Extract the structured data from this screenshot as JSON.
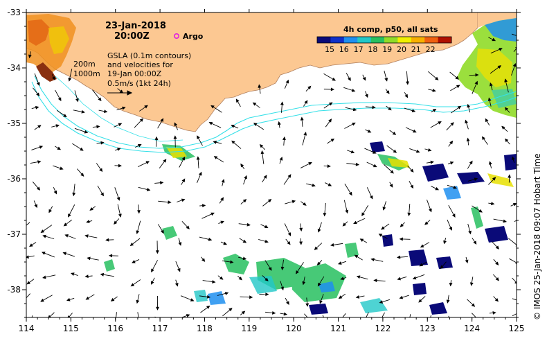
{
  "header": {
    "date": "23-Jan-2018",
    "time": "20:00Z",
    "argo_label": "Argo"
  },
  "legend": {
    "line1": "GSLA (0.1m contours)",
    "line2": "and velocities for",
    "line3": "19-Jan 00:00Z",
    "scale_label": "0.5m/s (1kt 24h)",
    "isobath_200": "200m",
    "isobath_1000": "1000m"
  },
  "colorbar": {
    "title": "4h comp, p50, all sats",
    "ticks": [
      "15",
      "16",
      "17",
      "18",
      "19",
      "20",
      "21",
      "22"
    ],
    "colors": [
      "#0a0a78",
      "#1030c8",
      "#1f8ff0",
      "#22c8c8",
      "#28c060",
      "#90dc28",
      "#f0f000",
      "#f8b000",
      "#f06010",
      "#b01000"
    ]
  },
  "credit": "© IMOS 25-Jan-2018 09:07 Hobart Time",
  "axes": {
    "lon_ticks": [
      "114",
      "115",
      "116",
      "117",
      "118",
      "119",
      "120",
      "121",
      "122",
      "123",
      "124",
      "125"
    ],
    "lat_ticks": [
      "-33",
      "-34",
      "-35",
      "-36",
      "-37",
      "-38"
    ],
    "lon_range": [
      114,
      125
    ],
    "lat_range": [
      -38.5,
      -33
    ]
  },
  "colors": {
    "land": "#fcc892",
    "ocean": "#ffffff",
    "isobath": "#35e0e8",
    "argo": "#e020e0"
  }
}
